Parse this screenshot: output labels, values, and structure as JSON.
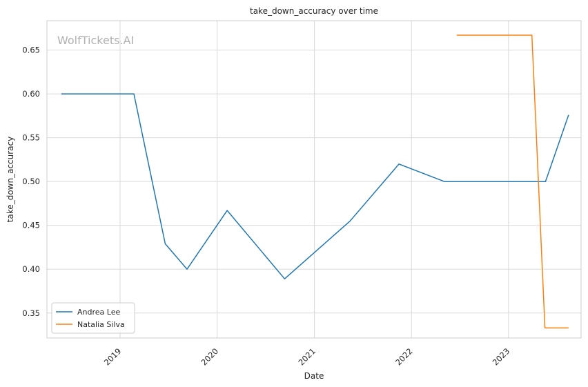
{
  "chart_data": {
    "type": "line",
    "title": "take_down_accuracy over time",
    "xlabel": "Date",
    "ylabel": "take_down_accuracy",
    "watermark": "WolfTickets.AI",
    "x_ticks": [
      "2019",
      "2020",
      "2021",
      "2022",
      "2023"
    ],
    "y_ticks": [
      "0.35",
      "0.40",
      "0.45",
      "0.50",
      "0.55",
      "0.60",
      "0.65"
    ],
    "xlim": [
      "2018-04-01",
      "2023-10-01"
    ],
    "ylim": [
      0.3215,
      0.6835
    ],
    "grid": true,
    "legend_position": "lower-left",
    "series": [
      {
        "name": "Andrea Lee",
        "color": "#1f77b4",
        "points": [
          {
            "x": "2018-05-25",
            "y": 0.6
          },
          {
            "x": "2019-02-22",
            "y": 0.6
          },
          {
            "x": "2019-06-20",
            "y": 0.429
          },
          {
            "x": "2019-09-10",
            "y": 0.4
          },
          {
            "x": "2020-02-08",
            "y": 0.467
          },
          {
            "x": "2020-09-11",
            "y": 0.389
          },
          {
            "x": "2021-05-15",
            "y": 0.455
          },
          {
            "x": "2021-11-15",
            "y": 0.52
          },
          {
            "x": "2022-05-05",
            "y": 0.5
          },
          {
            "x": "2023-05-20",
            "y": 0.5
          },
          {
            "x": "2023-08-15",
            "y": 0.576
          }
        ]
      },
      {
        "name": "Natalia Silva",
        "color": "#ff7f0e",
        "points": [
          {
            "x": "2022-06-20",
            "y": 0.667
          },
          {
            "x": "2023-03-30",
            "y": 0.667
          },
          {
            "x": "2023-05-18",
            "y": 0.333
          },
          {
            "x": "2023-08-15",
            "y": 0.333
          }
        ]
      }
    ]
  }
}
